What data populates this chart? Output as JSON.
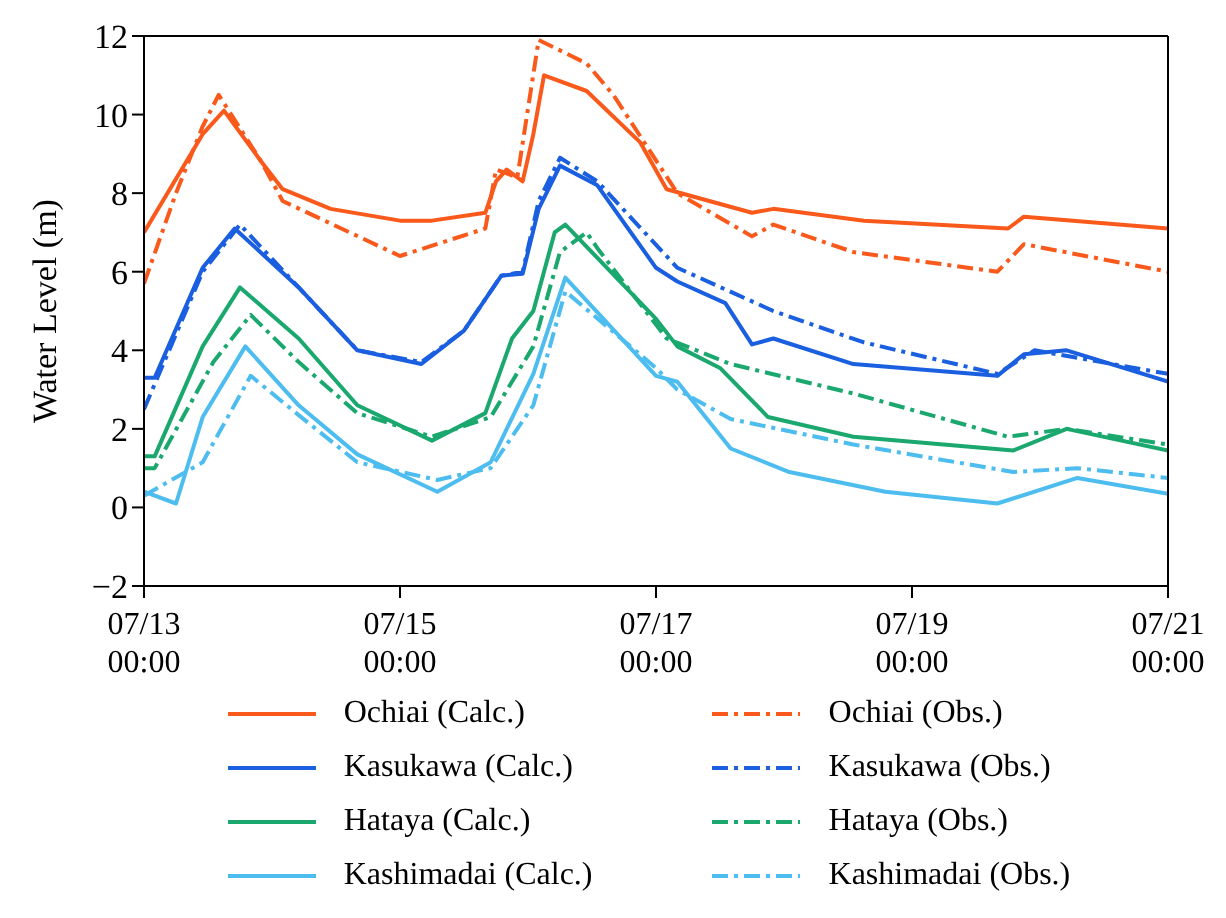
{
  "chart_data": {
    "type": "line",
    "ylabel": "Water Level (m)",
    "ylim": [
      -2,
      12
    ],
    "yticks": [
      -2,
      0,
      2,
      4,
      6,
      8,
      10,
      12
    ],
    "xlim": [
      "--07-13T00:00",
      "--07-21T00:00"
    ],
    "xticks": [
      {
        "value": "--07-13T00:00",
        "label": "07/13\n00:00"
      },
      {
        "value": "--07-15T00:00",
        "label": "07/15\n00:00"
      },
      {
        "value": "--07-17T00:00",
        "label": "07/17\n00:00"
      },
      {
        "value": "--07-19T00:00",
        "label": "07/19\n00:00"
      },
      {
        "value": "--07-21T00:00",
        "label": "07/21\n00:00"
      }
    ],
    "grid": false,
    "legend": "bottom",
    "marker": "none",
    "series": [
      {
        "name": "Ochiai (Calc.)",
        "color": "#f95a1c",
        "line_style": "solid",
        "x": [
          "--07-13T00:00",
          "--07-13T11:00",
          "--07-13T15:00",
          "--07-13T22:00",
          "--07-14T02:00",
          "--07-14T11:00",
          "--07-15T00:00",
          "--07-15T06:00",
          "--07-15T16:00",
          "--07-15T18:00",
          "--07-15T20:00",
          "--07-15T23:00",
          "--07-16T01:00",
          "--07-16T03:00",
          "--07-16T11:00",
          "--07-16T21:00",
          "--07-17T02:00",
          "--07-17T18:00",
          "--07-17T22:00",
          "--07-18T15:00",
          "--07-19T18:00",
          "--07-19T21:00",
          "--07-21T00:00"
        ],
        "values": [
          7.0,
          9.5,
          10.1,
          8.8,
          8.1,
          7.6,
          7.3,
          7.3,
          7.5,
          8.3,
          8.6,
          8.3,
          9.5,
          11.0,
          10.6,
          9.3,
          8.1,
          7.5,
          7.6,
          7.3,
          7.1,
          7.4,
          7.1
        ]
      },
      {
        "name": "Kasukawa (Calc.)",
        "color": "#1a5fe0",
        "line_style": "solid",
        "x": [
          "--07-13T00:00",
          "--07-13T02:00",
          "--07-13T11:00",
          "--07-13T17:00",
          "--07-14T05:00",
          "--07-14T16:00",
          "--07-15T04:00",
          "--07-15T12:00",
          "--07-15T19:00",
          "--07-15T23:00",
          "--07-16T02:00",
          "--07-16T06:00",
          "--07-16T13:00",
          "--07-17T00:00",
          "--07-17T04:00",
          "--07-17T13:00",
          "--07-17T18:00",
          "--07-17T22:00",
          "--07-18T13:00",
          "--07-19T16:00",
          "--07-19T21:00",
          "--07-20T05:00",
          "--07-21T00:00"
        ],
        "values": [
          3.3,
          3.3,
          6.1,
          7.1,
          5.6,
          4.0,
          3.65,
          4.5,
          5.9,
          5.95,
          7.6,
          8.7,
          8.2,
          6.1,
          5.75,
          5.2,
          4.15,
          4.3,
          3.65,
          3.35,
          3.9,
          4.0,
          3.2
        ]
      },
      {
        "name": "Hataya (Calc.)",
        "color": "#1aa86e",
        "line_style": "solid",
        "x": [
          "--07-13T00:00",
          "--07-13T02:00",
          "--07-13T11:00",
          "--07-13T18:00",
          "--07-14T05:00",
          "--07-14T16:00",
          "--07-15T06:00",
          "--07-15T16:00",
          "--07-15T21:00",
          "--07-16T01:00",
          "--07-16T05:00",
          "--07-16T07:00",
          "--07-17T00:00",
          "--07-17T04:00",
          "--07-17T12:00",
          "--07-17T21:00",
          "--07-18T13:00",
          "--07-19T19:00",
          "--07-20T05:00",
          "--07-21T00:00"
        ],
        "values": [
          1.3,
          1.3,
          4.1,
          5.6,
          4.3,
          2.6,
          1.7,
          2.4,
          4.3,
          5.0,
          7.0,
          7.2,
          4.8,
          4.1,
          3.55,
          2.3,
          1.8,
          1.45,
          2.0,
          1.45
        ]
      },
      {
        "name": "Kashimadai (Calc.)",
        "color": "#4dbdf0",
        "line_style": "solid",
        "x": [
          "--07-13T00:00",
          "--07-13T06:00",
          "--07-13T11:00",
          "--07-13T19:00",
          "--07-14T05:00",
          "--07-14T16:00",
          "--07-15T07:00",
          "--07-15T17:00",
          "--07-16T01:00",
          "--07-16T07:00",
          "--07-17T00:00",
          "--07-17T04:00",
          "--07-17T14:00",
          "--07-18T01:00",
          "--07-18T19:00",
          "--07-19T16:00",
          "--07-20T07:00",
          "--07-21T00:00"
        ],
        "values": [
          0.4,
          0.1,
          2.3,
          4.1,
          2.6,
          1.35,
          0.4,
          1.15,
          3.4,
          5.85,
          3.35,
          3.2,
          1.5,
          0.9,
          0.4,
          0.1,
          0.75,
          0.35
        ]
      },
      {
        "name": "Ochiai (Obs.)",
        "color": "#f95a1c",
        "line_style": "dashdot",
        "x": [
          "--07-13T00:00",
          "--07-13T06:00",
          "--07-13T11:00",
          "--07-13T14:00",
          "--07-13T22:00",
          "--07-14T02:00",
          "--07-15T00:00",
          "--07-15T16:00",
          "--07-15T18:00",
          "--07-15T22:00",
          "--07-16T02:00",
          "--07-16T11:00",
          "--07-16T16:00",
          "--07-17T04:00",
          "--07-17T18:00",
          "--07-17T22:00",
          "--07-18T13:00",
          "--07-19T16:00",
          "--07-19T21:00",
          "--07-21T00:00"
        ],
        "values": [
          5.7,
          8.0,
          9.7,
          10.5,
          8.8,
          7.8,
          6.4,
          7.1,
          8.6,
          8.4,
          11.9,
          11.3,
          10.5,
          8.0,
          6.9,
          7.2,
          6.5,
          6.0,
          6.7,
          6.0
        ]
      },
      {
        "name": "Kasukawa (Obs.)",
        "color": "#1a5fe0",
        "line_style": "dashdot",
        "x": [
          "--07-13T00:00",
          "--07-13T11:00",
          "--07-13T18:00",
          "--07-14T05:00",
          "--07-14T16:00",
          "--07-15T04:00",
          "--07-15T12:00",
          "--07-15T19:00",
          "--07-15T23:00",
          "--07-16T02:00",
          "--07-16T06:00",
          "--07-16T13:00",
          "--07-17T04:00",
          "--07-17T22:00",
          "--07-18T15:00",
          "--07-19T16:00",
          "--07-19T23:00",
          "--07-21T00:00"
        ],
        "values": [
          2.5,
          6.0,
          7.2,
          5.6,
          4.0,
          3.7,
          4.5,
          5.9,
          6.0,
          7.8,
          8.9,
          8.3,
          6.1,
          5.0,
          4.2,
          3.4,
          4.0,
          3.4
        ]
      },
      {
        "name": "Hataya (Obs.)",
        "color": "#1aa86e",
        "line_style": "dashdot",
        "x": [
          "--07-13T00:00",
          "--07-13T02:00",
          "--07-13T13:00",
          "--07-13T20:00",
          "--07-14T05:00",
          "--07-14T16:00",
          "--07-15T06:00",
          "--07-15T17:00",
          "--07-16T01:00",
          "--07-16T06:00",
          "--07-16T11:00",
          "--07-16T13:00",
          "--07-17T02:00",
          "--07-17T14:00",
          "--07-18T13:00",
          "--07-19T18:00",
          "--07-20T05:00",
          "--07-21T00:00"
        ],
        "values": [
          1.0,
          1.0,
          3.7,
          4.9,
          3.7,
          2.4,
          1.8,
          2.3,
          4.1,
          6.5,
          7.0,
          6.6,
          4.3,
          3.65,
          2.9,
          1.8,
          2.0,
          1.6
        ]
      },
      {
        "name": "Kashimadai (Obs.)",
        "color": "#4dbdf0",
        "line_style": "dashdot",
        "x": [
          "--07-13T00:00",
          "--07-13T11:00",
          "--07-13T20:00",
          "--07-14T05:00",
          "--07-14T16:00",
          "--07-15T07:00",
          "--07-15T17:00",
          "--07-16T01:00",
          "--07-16T07:00",
          "--07-17T00:00",
          "--07-17T04:00",
          "--07-17T14:00",
          "--07-18T13:00",
          "--07-19T19:00",
          "--07-20T07:00",
          "--07-21T00:00"
        ],
        "values": [
          0.3,
          1.15,
          3.35,
          2.35,
          1.15,
          0.7,
          1.0,
          2.6,
          5.5,
          3.55,
          3.0,
          2.25,
          1.6,
          0.9,
          1.0,
          0.75
        ]
      }
    ]
  }
}
